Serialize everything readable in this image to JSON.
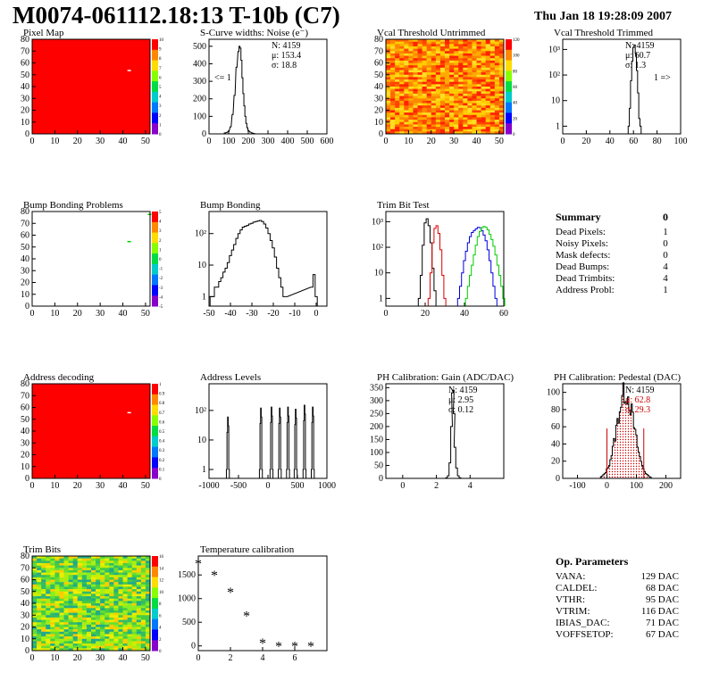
{
  "page": {
    "title": "M0074-061112.18:13 T-10b (C7)",
    "date": "Thu Jan 18 19:28:09 2007"
  },
  "chart_data": [
    {
      "id": "pixel_map",
      "type": "heatmap",
      "title": "Pixel Map",
      "xlim": [
        0,
        52
      ],
      "ylim": [
        0,
        80
      ],
      "xticks": [
        0,
        10,
        20,
        30,
        40,
        50
      ],
      "yticks": [
        0,
        10,
        20,
        30,
        40,
        50,
        60,
        70,
        80
      ],
      "fill": "uniform-red",
      "special_cells": [
        {
          "x": 42,
          "y": 53,
          "color": "#ffffff"
        }
      ],
      "palette_ticks": [
        "0",
        "1",
        "2",
        "3",
        "4",
        "5",
        "6",
        "7",
        "8",
        "9",
        "10"
      ]
    },
    {
      "id": "scurve",
      "type": "histogram",
      "title": "S-Curve widths: Noise (e⁻)",
      "xlim": [
        0,
        600
      ],
      "xticks": [
        0,
        100,
        200,
        300,
        400,
        500,
        600
      ],
      "ylim": [
        0,
        540
      ],
      "yticks": [
        0,
        100,
        200,
        300,
        400,
        500
      ],
      "stats": [
        "N: 4159",
        "μ: 153.4",
        "σ: 18.8"
      ],
      "annotation": "<= 1",
      "bins": [
        [
          80,
          5
        ],
        [
          90,
          8
        ],
        [
          100,
          15
        ],
        [
          110,
          40
        ],
        [
          120,
          110
        ],
        [
          130,
          220
        ],
        [
          140,
          380
        ],
        [
          150,
          470
        ],
        [
          155,
          500
        ],
        [
          160,
          490
        ],
        [
          165,
          420
        ],
        [
          170,
          320
        ],
        [
          175,
          230
        ],
        [
          180,
          160
        ],
        [
          185,
          100
        ],
        [
          190,
          60
        ],
        [
          195,
          35
        ],
        [
          200,
          20
        ],
        [
          210,
          10
        ],
        [
          220,
          5
        ],
        [
          230,
          2
        ]
      ]
    },
    {
      "id": "vcal_untrimmed",
      "type": "heatmap",
      "title": "Vcal Threshold Untrimmed",
      "xlim": [
        0,
        52
      ],
      "ylim": [
        0,
        80
      ],
      "xticks": [
        0,
        10,
        20,
        30,
        40,
        50
      ],
      "yticks": [
        0,
        10,
        20,
        30,
        40,
        50,
        60,
        70,
        80
      ],
      "fill": "orange-noise",
      "palette_ticks": [
        "0",
        "20",
        "40",
        "60",
        "80",
        "100",
        "120"
      ]
    },
    {
      "id": "vcal_trimmed",
      "type": "histogram",
      "title": "Vcal Threshold Trimmed",
      "xlim": [
        0,
        100
      ],
      "log_y": true,
      "xticks": [
        0,
        20,
        40,
        60,
        80,
        100
      ],
      "yticks": [
        "1",
        "10",
        "10²",
        "10³"
      ],
      "ylog_range": [
        0.5,
        2500
      ],
      "stats": [
        "N: 4159",
        "μ: 60.7",
        "σ:  1.3"
      ],
      "annotation": "1 =>",
      "bins": [
        [
          56,
          1
        ],
        [
          57,
          5
        ],
        [
          58,
          60
        ],
        [
          59,
          350
        ],
        [
          60,
          1200
        ],
        [
          61,
          1500
        ],
        [
          62,
          700
        ],
        [
          63,
          150
        ],
        [
          64,
          20
        ],
        [
          65,
          2
        ],
        [
          66,
          1
        ]
      ]
    },
    {
      "id": "bump_problems",
      "type": "heatmap",
      "title": "Bump Bonding Problems",
      "xlim": [
        0,
        52
      ],
      "ylim": [
        0,
        80
      ],
      "xticks": [
        0,
        10,
        20,
        30,
        40,
        50
      ],
      "yticks": [
        0,
        10,
        20,
        30,
        40,
        50,
        60,
        70,
        80
      ],
      "fill": "white",
      "special_cells": [
        {
          "x": 42,
          "y": 54,
          "color": "#00cc00"
        },
        {
          "x": 51,
          "y": 77,
          "color": "#00cc00"
        }
      ],
      "palette_ticks": [
        "-5",
        "-4",
        "-3",
        "-2",
        "-1",
        "0",
        "1",
        "2",
        "3",
        "4",
        "5"
      ]
    },
    {
      "id": "bump_bonding",
      "type": "histogram",
      "title": "Bump Bonding",
      "xlim": [
        -50,
        5
      ],
      "log_y": true,
      "xticks": [
        -50,
        -40,
        -30,
        -20,
        -10,
        0
      ],
      "yticks": [
        "1",
        "10",
        "10²"
      ],
      "ylog_range": [
        0.5,
        500
      ],
      "bins": [
        [
          -49,
          1
        ],
        [
          -48,
          1
        ],
        [
          -47,
          2
        ],
        [
          -46,
          2
        ],
        [
          -45,
          3
        ],
        [
          -44,
          4
        ],
        [
          -43,
          6
        ],
        [
          -42,
          8
        ],
        [
          -41,
          12
        ],
        [
          -40,
          20
        ],
        [
          -39,
          30
        ],
        [
          -38,
          45
        ],
        [
          -37,
          70
        ],
        [
          -36,
          100
        ],
        [
          -35,
          130
        ],
        [
          -34,
          160
        ],
        [
          -33,
          170
        ],
        [
          -32,
          180
        ],
        [
          -31,
          200
        ],
        [
          -30,
          210
        ],
        [
          -29,
          230
        ],
        [
          -28,
          240
        ],
        [
          -27,
          250
        ],
        [
          -26,
          260
        ],
        [
          -25,
          240
        ],
        [
          -24,
          200
        ],
        [
          -23,
          150
        ],
        [
          -22,
          100
        ],
        [
          -21,
          60
        ],
        [
          -20,
          35
        ],
        [
          -19,
          18
        ],
        [
          -18,
          8
        ],
        [
          -17,
          4
        ],
        [
          -16,
          2
        ],
        [
          -15,
          1
        ],
        [
          -14,
          1
        ],
        [
          -2,
          2
        ],
        [
          -1,
          5
        ],
        [
          0,
          1
        ]
      ]
    },
    {
      "id": "trim_bit_test",
      "type": "histogram",
      "title": "Trim Bit Test",
      "xlim": [
        0,
        60
      ],
      "log_y": true,
      "xticks": [
        0,
        20,
        40,
        60
      ],
      "yticks": [
        "1",
        "10",
        "10²",
        "10³"
      ],
      "ylog_range": [
        0.5,
        2500
      ],
      "series": [
        {
          "color": "#000000",
          "bins": [
            [
              17,
              1
            ],
            [
              18,
              8
            ],
            [
              19,
              120
            ],
            [
              20,
              900
            ],
            [
              21,
              1300
            ],
            [
              22,
              700
            ],
            [
              23,
              150
            ],
            [
              24,
              15
            ],
            [
              25,
              2
            ]
          ]
        },
        {
          "color": "#dd0000",
          "bins": [
            [
              22,
              1
            ],
            [
              23,
              10
            ],
            [
              24,
              150
            ],
            [
              25,
              550
            ],
            [
              26,
              700
            ],
            [
              27,
              350
            ],
            [
              28,
              80
            ],
            [
              29,
              8
            ],
            [
              30,
              1
            ]
          ]
        },
        {
          "color": "#0000dd",
          "bins": [
            [
              37,
              1
            ],
            [
              38,
              3
            ],
            [
              39,
              10
            ],
            [
              40,
              30
            ],
            [
              41,
              70
            ],
            [
              42,
              150
            ],
            [
              43,
              260
            ],
            [
              44,
              380
            ],
            [
              45,
              450
            ],
            [
              46,
              520
            ],
            [
              47,
              600
            ],
            [
              48,
              580
            ],
            [
              49,
              450
            ],
            [
              50,
              300
            ],
            [
              51,
              180
            ],
            [
              52,
              80
            ],
            [
              53,
              30
            ],
            [
              54,
              10
            ],
            [
              55,
              3
            ],
            [
              56,
              1
            ]
          ]
        },
        {
          "color": "#00cc00",
          "bins": [
            [
              41,
              1
            ],
            [
              42,
              3
            ],
            [
              43,
              8
            ],
            [
              44,
              20
            ],
            [
              45,
              50
            ],
            [
              46,
              120
            ],
            [
              47,
              260
            ],
            [
              48,
              420
            ],
            [
              49,
              580
            ],
            [
              50,
              650
            ],
            [
              51,
              600
            ],
            [
              52,
              480
            ],
            [
              53,
              320
            ],
            [
              54,
              200
            ],
            [
              55,
              110
            ],
            [
              56,
              50
            ],
            [
              57,
              20
            ],
            [
              58,
              8
            ],
            [
              59,
              3
            ],
            [
              60,
              1
            ]
          ]
        }
      ]
    },
    {
      "id": "address_decoding",
      "type": "heatmap",
      "title": "Address decoding",
      "xlim": [
        0,
        52
      ],
      "ylim": [
        0,
        80
      ],
      "xticks": [
        0,
        10,
        20,
        30,
        40,
        50
      ],
      "yticks": [
        0,
        10,
        20,
        30,
        40,
        50,
        60,
        70,
        80
      ],
      "fill": "uniform-red",
      "special_cells": [
        {
          "x": 42,
          "y": 55,
          "color": "#ffffff"
        }
      ],
      "palette_ticks": [
        "0",
        "0.1",
        "0.2",
        "0.3",
        "0.4",
        "0.5",
        "0.6",
        "0.7",
        "0.8",
        "0.9",
        "1"
      ]
    },
    {
      "id": "address_levels",
      "type": "histogram",
      "title": "Address Levels",
      "xlim": [
        -1000,
        1000
      ],
      "log_y": true,
      "xticks": [
        -1000,
        -500,
        0,
        500,
        1000
      ],
      "yticks": [
        "1",
        "10",
        "10²"
      ],
      "ylog_range": [
        0.5,
        800
      ],
      "peaks": [
        [
          -680,
          60
        ],
        [
          -120,
          120
        ],
        [
          60,
          130
        ],
        [
          200,
          120
        ],
        [
          340,
          130
        ],
        [
          470,
          110
        ],
        [
          620,
          150
        ],
        [
          760,
          130
        ]
      ]
    },
    {
      "id": "ph_gain",
      "type": "histogram",
      "title": "PH Calibration: Gain (ADC/DAC)",
      "xlim": [
        -1,
        6
      ],
      "xticks": [
        0,
        2,
        4
      ],
      "ylim": [
        0,
        365
      ],
      "yticks": [
        0,
        50,
        100,
        150,
        200,
        250,
        300,
        350
      ],
      "stats": [
        "N: 4159",
        "μ: 2.95",
        "σ: 0.12"
      ],
      "bins": [
        [
          2.6,
          2
        ],
        [
          2.7,
          10
        ],
        [
          2.8,
          60
        ],
        [
          2.9,
          200
        ],
        [
          2.95,
          330
        ],
        [
          3.0,
          340
        ],
        [
          3.05,
          250
        ],
        [
          3.1,
          120
        ],
        [
          3.2,
          40
        ],
        [
          3.3,
          10
        ],
        [
          3.4,
          2
        ]
      ]
    },
    {
      "id": "ph_pedestal",
      "type": "histogram",
      "title": "PH Calibration: Pedestal (DAC)",
      "xlim": [
        -150,
        250
      ],
      "xticks": [
        -100,
        0,
        100,
        200
      ],
      "ylim": [
        0,
        110
      ],
      "yticks": [
        0,
        20,
        40,
        60,
        80,
        100
      ],
      "stats": [
        "N: 4159",
        "μ: 62.8",
        "σ: 29.3"
      ],
      "stat_highlight_color": "#cc0000",
      "markers": [
        0,
        125
      ]
    },
    {
      "id": "trim_bits",
      "type": "heatmap",
      "title": "Trim Bits",
      "xlim": [
        0,
        52
      ],
      "ylim": [
        0,
        80
      ],
      "xticks": [
        0,
        10,
        20,
        30,
        40,
        50
      ],
      "yticks": [
        0,
        10,
        20,
        30,
        40,
        50,
        60,
        70,
        80
      ],
      "fill": "green-noise",
      "palette_ticks": [
        "0",
        "2",
        "4",
        "6",
        "8",
        "10",
        "12",
        "14",
        "16"
      ]
    },
    {
      "id": "temperature",
      "type": "scatter",
      "title": "Temperature calibration",
      "xlim": [
        0,
        8
      ],
      "ylim": [
        -100,
        1900
      ],
      "xticks": [
        0,
        2,
        4,
        6
      ],
      "yticks": [
        0,
        500,
        1000,
        1500
      ],
      "points": [
        [
          0,
          1750
        ],
        [
          1,
          1500
        ],
        [
          2,
          1150
        ],
        [
          3,
          650
        ],
        [
          4,
          70
        ],
        [
          5,
          0
        ],
        [
          6,
          0
        ],
        [
          7,
          0
        ]
      ]
    }
  ],
  "summary": {
    "title": "Summary",
    "total": "0",
    "rows": [
      {
        "label": "Dead Pixels:",
        "value": "1"
      },
      {
        "label": "Noisy Pixels:",
        "value": "0"
      },
      {
        "label": "Mask defects:",
        "value": "0"
      },
      {
        "label": "Dead Bumps:",
        "value": "4"
      },
      {
        "label": "Dead Trimbits:",
        "value": "4"
      },
      {
        "label": "Address Probl:",
        "value": "1"
      }
    ]
  },
  "params": {
    "title": "Op. Parameters",
    "rows": [
      {
        "label": "VANA:",
        "value": "129 DAC"
      },
      {
        "label": "CALDEL:",
        "value": "68 DAC"
      },
      {
        "label": "VTHR:",
        "value": "95 DAC"
      },
      {
        "label": "VTRIM:",
        "value": "116 DAC"
      },
      {
        "label": "IBIAS_DAC:",
        "value": "71 DAC"
      },
      {
        "label": "VOFFSETOP:",
        "value": "67 DAC"
      }
    ]
  }
}
